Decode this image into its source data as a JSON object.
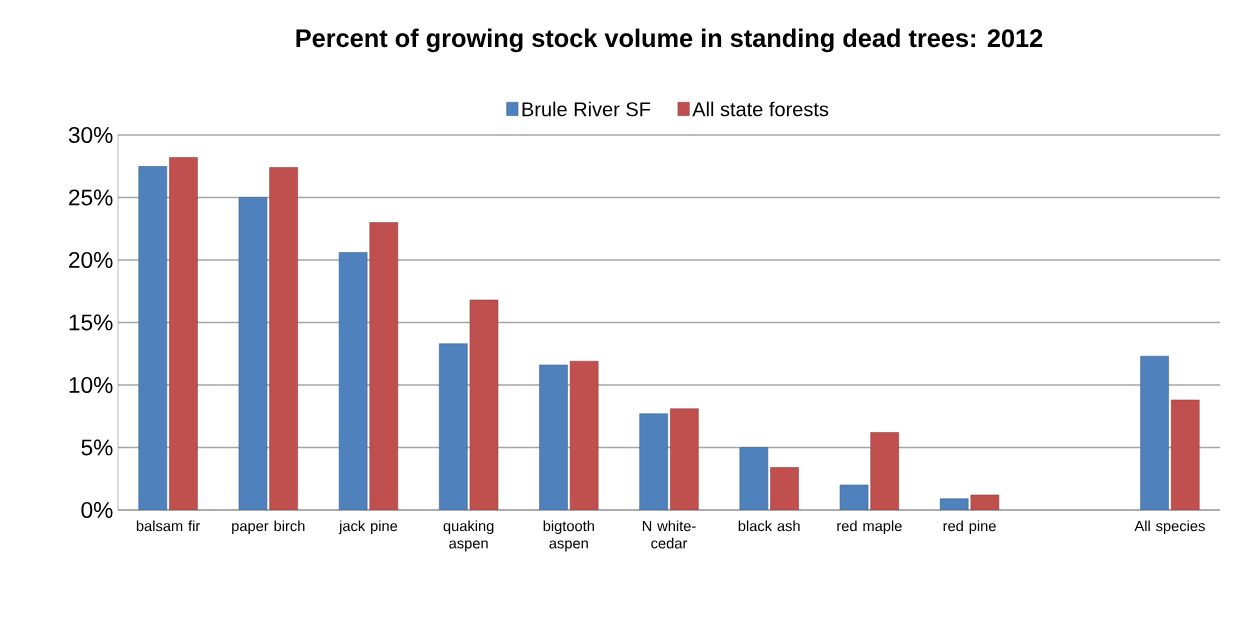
{
  "chart_data": {
    "type": "bar",
    "title": "Percent of growing stock volume in standing dead trees:    2012",
    "categories": [
      "balsam fir",
      "paper birch",
      "jack pine",
      "quaking aspen",
      "bigtooth aspen",
      "N white-cedar",
      "black ash",
      "red maple",
      "red pine",
      null,
      "All species"
    ],
    "series": [
      {
        "name": "Brule River SF",
        "color": "#4f81bd",
        "values": [
          27.5,
          25,
          20.6,
          13.3,
          11.6,
          7.7,
          5,
          2,
          0.9,
          null,
          12.3
        ]
      },
      {
        "name": "All state forests",
        "color": "#c0504d",
        "values": [
          28.2,
          27.4,
          23,
          16.8,
          11.9,
          8.1,
          3.4,
          6.2,
          1.2,
          null,
          8.8
        ]
      }
    ],
    "ylim": [
      0,
      30
    ],
    "yticks": [
      {
        "value": 0,
        "label": "0%"
      },
      {
        "value": 5,
        "label": "5%"
      },
      {
        "value": 10,
        "label": "10%"
      },
      {
        "value": 15,
        "label": "15%"
      },
      {
        "value": 20,
        "label": "20%"
      },
      {
        "value": 25,
        "label": "25%"
      },
      {
        "value": 30,
        "label": "30%"
      }
    ],
    "grid": "y",
    "legend": "top"
  }
}
